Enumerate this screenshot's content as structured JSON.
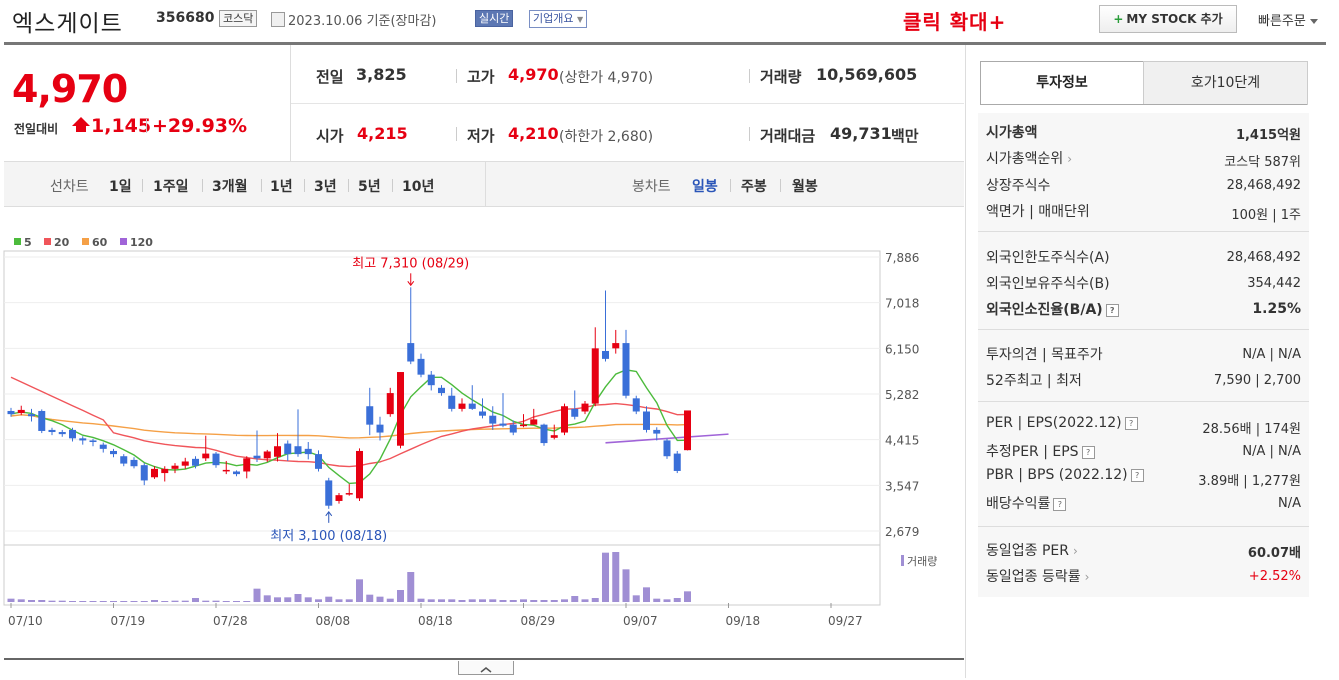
{
  "stock": {
    "name": "엑스게이트",
    "code": "356680",
    "market": "코스닥",
    "date": "2023.10.06 기준(장마감)",
    "realtime_label": "실시간",
    "overview_label": "기업개요",
    "zoom_label": "클릭 확대+",
    "mystock_label": "MY STOCK 추가",
    "quick_order_label": "빠른주문"
  },
  "quote": {
    "price": "4,970",
    "change_label": "전일대비",
    "change": "1,145",
    "change_pct": "+29.93%",
    "prev_close_label": "전일",
    "prev_close": "3,825",
    "high_label": "고가",
    "high": "4,970",
    "upper_limit": "(상한가 4,970)",
    "volume_label": "거래량",
    "volume": "10,569,605",
    "open_label": "시가",
    "open": "4,215",
    "low_label": "저가",
    "low": "4,210",
    "lower_limit": "(하한가 2,680)",
    "amount_label": "거래대금",
    "amount": "49,731",
    "amount_unit": "백만"
  },
  "period_bar": {
    "line_chart_label": "선차트",
    "periods": [
      "1일",
      "1주일",
      "3개월",
      "1년",
      "3년",
      "5년",
      "10년"
    ],
    "candle_label": "봉차트",
    "candle_periods": [
      "일봉",
      "주봉",
      "월봉"
    ],
    "active_candle": "일봉"
  },
  "colors": {
    "up": "#e60012",
    "down": "#3a6fd8",
    "ma5": "#4cbb3c",
    "ma20": "#f0555a",
    "ma60": "#f5a046",
    "ma120": "#a064d8",
    "volume": "#a08fd4"
  },
  "chart_data": {
    "type": "candlestick",
    "legend": [
      "5",
      "20",
      "60",
      "120"
    ],
    "y_ticks": [
      "7,886",
      "7,018",
      "6,150",
      "5,282",
      "4,415",
      "3,547",
      "2,679"
    ],
    "ylim": [
      2679,
      7886
    ],
    "x_ticks": [
      "07/10",
      "07/19",
      "07/28",
      "08/08",
      "08/18",
      "08/29",
      "09/07",
      "09/18",
      "09/27"
    ],
    "high_annotation": "최고 7,310 (08/29)",
    "low_annotation": "최저 3,100 (08/18)",
    "volume_label": "거래량",
    "candles": [
      {
        "o": 4960,
        "c": 4900,
        "h": 5020,
        "l": 4850
      },
      {
        "o": 4920,
        "c": 4980,
        "h": 5060,
        "l": 4880
      },
      {
        "o": 4900,
        "c": 4860,
        "h": 5000,
        "l": 4760
      },
      {
        "o": 4960,
        "c": 4580,
        "h": 4990,
        "l": 4540
      },
      {
        "o": 4600,
        "c": 4560,
        "h": 4640,
        "l": 4500
      },
      {
        "o": 4560,
        "c": 4520,
        "h": 4600,
        "l": 4470
      },
      {
        "o": 4600,
        "c": 4440,
        "h": 4640,
        "l": 4380
      },
      {
        "o": 4440,
        "c": 4400,
        "h": 4480,
        "l": 4320
      },
      {
        "o": 4400,
        "c": 4370,
        "h": 4430,
        "l": 4290
      },
      {
        "o": 4320,
        "c": 4240,
        "h": 4360,
        "l": 4170
      },
      {
        "o": 4200,
        "c": 4140,
        "h": 4240,
        "l": 4080
      },
      {
        "o": 4100,
        "c": 3960,
        "h": 4140,
        "l": 3910
      },
      {
        "o": 4030,
        "c": 3910,
        "h": 4080,
        "l": 3870
      },
      {
        "o": 3930,
        "c": 3640,
        "h": 3970,
        "l": 3550
      },
      {
        "o": 3700,
        "c": 3860,
        "h": 3910,
        "l": 3670
      },
      {
        "o": 3780,
        "c": 3860,
        "h": 3910,
        "l": 3620
      },
      {
        "o": 3860,
        "c": 3920,
        "h": 3970,
        "l": 3780
      },
      {
        "o": 3920,
        "c": 4000,
        "h": 4070,
        "l": 3860
      },
      {
        "o": 4050,
        "c": 3920,
        "h": 4100,
        "l": 3870
      },
      {
        "o": 4060,
        "c": 4150,
        "h": 4490,
        "l": 4010
      },
      {
        "o": 4150,
        "c": 3930,
        "h": 4180,
        "l": 3880
      },
      {
        "o": 3840,
        "c": 3840,
        "h": 4010,
        "l": 3760
      },
      {
        "o": 3810,
        "c": 3760,
        "h": 3830,
        "l": 3720
      },
      {
        "o": 3810,
        "c": 4060,
        "h": 4100,
        "l": 3680
      },
      {
        "o": 4110,
        "c": 4060,
        "h": 4590,
        "l": 3990
      },
      {
        "o": 4060,
        "c": 4190,
        "h": 4220,
        "l": 3990
      },
      {
        "o": 4090,
        "c": 4290,
        "h": 4540,
        "l": 4000
      },
      {
        "o": 4340,
        "c": 4140,
        "h": 4400,
        "l": 4010
      },
      {
        "o": 4290,
        "c": 4140,
        "h": 4990,
        "l": 4090
      },
      {
        "o": 4240,
        "c": 4140,
        "h": 4370,
        "l": 4040
      },
      {
        "o": 4140,
        "c": 3860,
        "h": 4210,
        "l": 3810
      },
      {
        "o": 3640,
        "c": 3160,
        "h": 3690,
        "l": 3100
      },
      {
        "o": 3250,
        "c": 3360,
        "h": 3400,
        "l": 3200
      },
      {
        "o": 3400,
        "c": 3400,
        "h": 3570,
        "l": 3350
      },
      {
        "o": 3300,
        "c": 4200,
        "h": 4250,
        "l": 3250
      },
      {
        "o": 5050,
        "c": 4700,
        "h": 5400,
        "l": 4500
      },
      {
        "o": 4700,
        "c": 4550,
        "h": 4850,
        "l": 4400
      },
      {
        "o": 4900,
        "c": 5300,
        "h": 5400,
        "l": 4850
      },
      {
        "o": 4300,
        "c": 5700,
        "h": 5700,
        "l": 4250
      },
      {
        "o": 6250,
        "c": 5900,
        "h": 7310,
        "l": 5850
      },
      {
        "o": 5950,
        "c": 5650,
        "h": 6050,
        "l": 5600
      },
      {
        "o": 5650,
        "c": 5450,
        "h": 5720,
        "l": 5350
      },
      {
        "o": 5400,
        "c": 5300,
        "h": 5450,
        "l": 5250
      },
      {
        "o": 5250,
        "c": 5000,
        "h": 5400,
        "l": 4950
      },
      {
        "o": 5000,
        "c": 5100,
        "h": 5200,
        "l": 4950
      },
      {
        "o": 5100,
        "c": 5000,
        "h": 5450,
        "l": 4980
      },
      {
        "o": 4950,
        "c": 4870,
        "h": 5200,
        "l": 4820
      },
      {
        "o": 4870,
        "c": 4720,
        "h": 5050,
        "l": 4600
      },
      {
        "o": 4720,
        "c": 4680,
        "h": 5300,
        "l": 4650
      },
      {
        "o": 4700,
        "c": 4550,
        "h": 4780,
        "l": 4500
      },
      {
        "o": 4700,
        "c": 4700,
        "h": 4900,
        "l": 4650
      },
      {
        "o": 4700,
        "c": 4800,
        "h": 5000,
        "l": 4700
      },
      {
        "o": 4700,
        "c": 4350,
        "h": 4720,
        "l": 4300
      },
      {
        "o": 4450,
        "c": 4500,
        "h": 4700,
        "l": 4420
      },
      {
        "o": 4550,
        "c": 5050,
        "h": 5100,
        "l": 4500
      },
      {
        "o": 5000,
        "c": 4850,
        "h": 5350,
        "l": 4800
      },
      {
        "o": 4950,
        "c": 5100,
        "h": 5150,
        "l": 4900
      },
      {
        "o": 5100,
        "c": 6150,
        "h": 6550,
        "l": 5050
      },
      {
        "o": 6100,
        "c": 5950,
        "h": 7250,
        "l": 5900
      },
      {
        "o": 6150,
        "c": 6250,
        "h": 6500,
        "l": 6050
      },
      {
        "o": 6250,
        "c": 5250,
        "h": 6500,
        "l": 5200
      },
      {
        "o": 5200,
        "c": 4950,
        "h": 5250,
        "l": 4900
      },
      {
        "o": 4950,
        "c": 4600,
        "h": 5050,
        "l": 4550
      },
      {
        "o": 4600,
        "c": 4530,
        "h": 4650,
        "l": 4400
      },
      {
        "o": 4400,
        "c": 4100,
        "h": 4430,
        "l": 4050
      },
      {
        "o": 4150,
        "c": 3820,
        "h": 4200,
        "l": 3780
      },
      {
        "o": 4215,
        "c": 4970,
        "h": 4970,
        "l": 4210
      }
    ],
    "volumes": [
      5,
      4,
      3,
      3,
      2,
      2,
      1,
      1,
      1,
      1,
      1,
      1,
      1,
      1,
      3,
      1,
      2,
      2,
      6,
      2,
      2,
      1,
      1,
      1,
      20,
      10,
      7,
      7,
      12,
      7,
      4,
      8,
      4,
      4,
      34,
      11,
      8,
      5,
      18,
      45,
      5,
      4,
      4,
      4,
      3,
      4,
      4,
      4,
      3,
      3,
      4,
      3,
      3,
      3,
      4,
      9,
      4,
      6,
      74,
      75,
      49,
      10,
      22,
      5,
      4,
      6,
      16
    ]
  },
  "info": {
    "tab_invest": "투자정보",
    "tab_orderbook": "호가10단계",
    "market_cap_label": "시가총액",
    "market_cap": "1,415억원",
    "market_cap_rank_label": "시가총액순위",
    "market_cap_rank": "코스닥 587위",
    "listed_shares_label": "상장주식수",
    "listed_shares": "28,468,492",
    "par_label": "액면가 | 매매단위",
    "par": "100원 | 1주",
    "foreign_limit_label": "외국인한도주식수(A)",
    "foreign_limit": "28,468,492",
    "foreign_hold_label": "외국인보유주식수(B)",
    "foreign_hold": "354,442",
    "foreign_ratio_label": "외국인소진율(B/A)",
    "foreign_ratio": "1.25%",
    "opinion_label": "투자의견 | 목표주가",
    "opinion": "N/A | N/A",
    "w52_label": "52주최고 | 최저",
    "w52": "7,590 | 2,700",
    "per_label": "PER | EPS(2022.12)",
    "per": "28.56배 | 174원",
    "est_per_label": "추정PER | EPS",
    "est_per": "N/A | N/A",
    "pbr_label": "PBR | BPS (2022.12)",
    "pbr": "3.89배 | 1,277원",
    "div_label": "배당수익률",
    "div": "N/A",
    "sector_per_label": "동일업종 PER",
    "sector_per": "60.07배",
    "sector_chg_label": "동일업종 등락률",
    "sector_chg": "+2.52%"
  }
}
